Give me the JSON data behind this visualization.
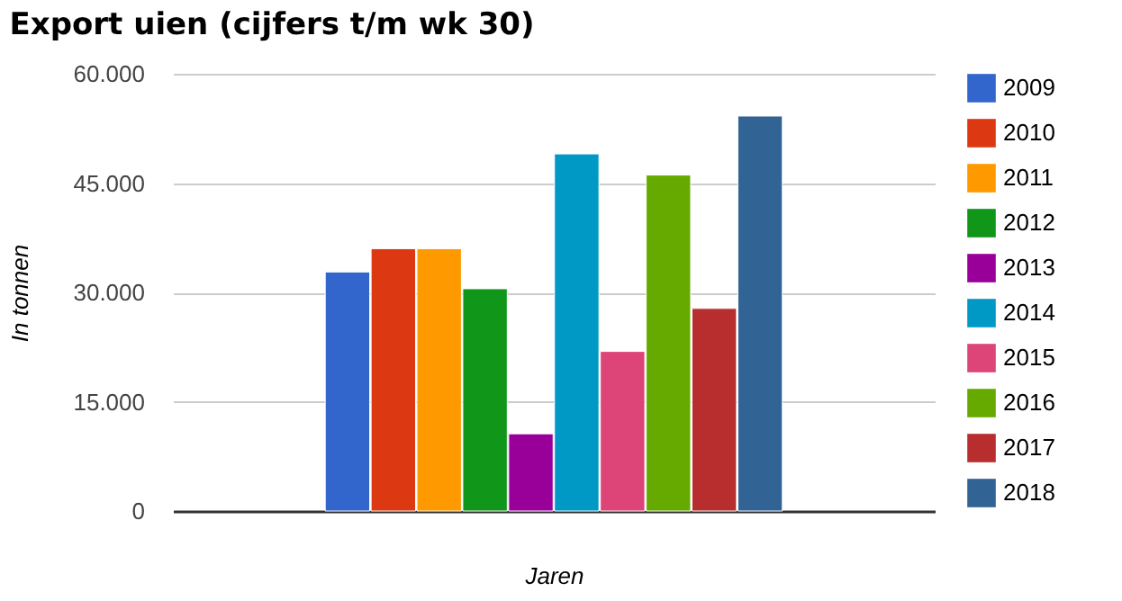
{
  "chart_data": {
    "type": "bar",
    "title": "Export uien (cijfers t/m wk 30)",
    "xlabel": "Jaren",
    "ylabel": "In tonnen",
    "categories": [
      null
    ],
    "series": [
      {
        "name": "2009",
        "color": "#3366cc",
        "values": [
          32800
        ]
      },
      {
        "name": "2010",
        "color": "#dc3912",
        "values": [
          36000
        ]
      },
      {
        "name": "2011",
        "color": "#ff9900",
        "values": [
          36000
        ]
      },
      {
        "name": "2012",
        "color": "#109618",
        "values": [
          30500
        ]
      },
      {
        "name": "2013",
        "color": "#990099",
        "values": [
          10600
        ]
      },
      {
        "name": "2014",
        "color": "#0099c6",
        "values": [
          49000
        ]
      },
      {
        "name": "2015",
        "color": "#dd4477",
        "values": [
          21900
        ]
      },
      {
        "name": "2016",
        "color": "#66aa00",
        "values": [
          46100
        ]
      },
      {
        "name": "2017",
        "color": "#b82e2e",
        "values": [
          27800
        ]
      },
      {
        "name": "2018",
        "color": "#316395",
        "values": [
          54200
        ]
      }
    ],
    "ylim": [
      0,
      60000
    ],
    "yticks": [
      {
        "value": 0,
        "label": "0"
      },
      {
        "value": 15000,
        "label": "15.000"
      },
      {
        "value": 30000,
        "label": "30.000"
      },
      {
        "value": 45000,
        "label": "45.000"
      },
      {
        "value": 60000,
        "label": "60.000"
      }
    ],
    "grid": "y",
    "legend": "right"
  }
}
